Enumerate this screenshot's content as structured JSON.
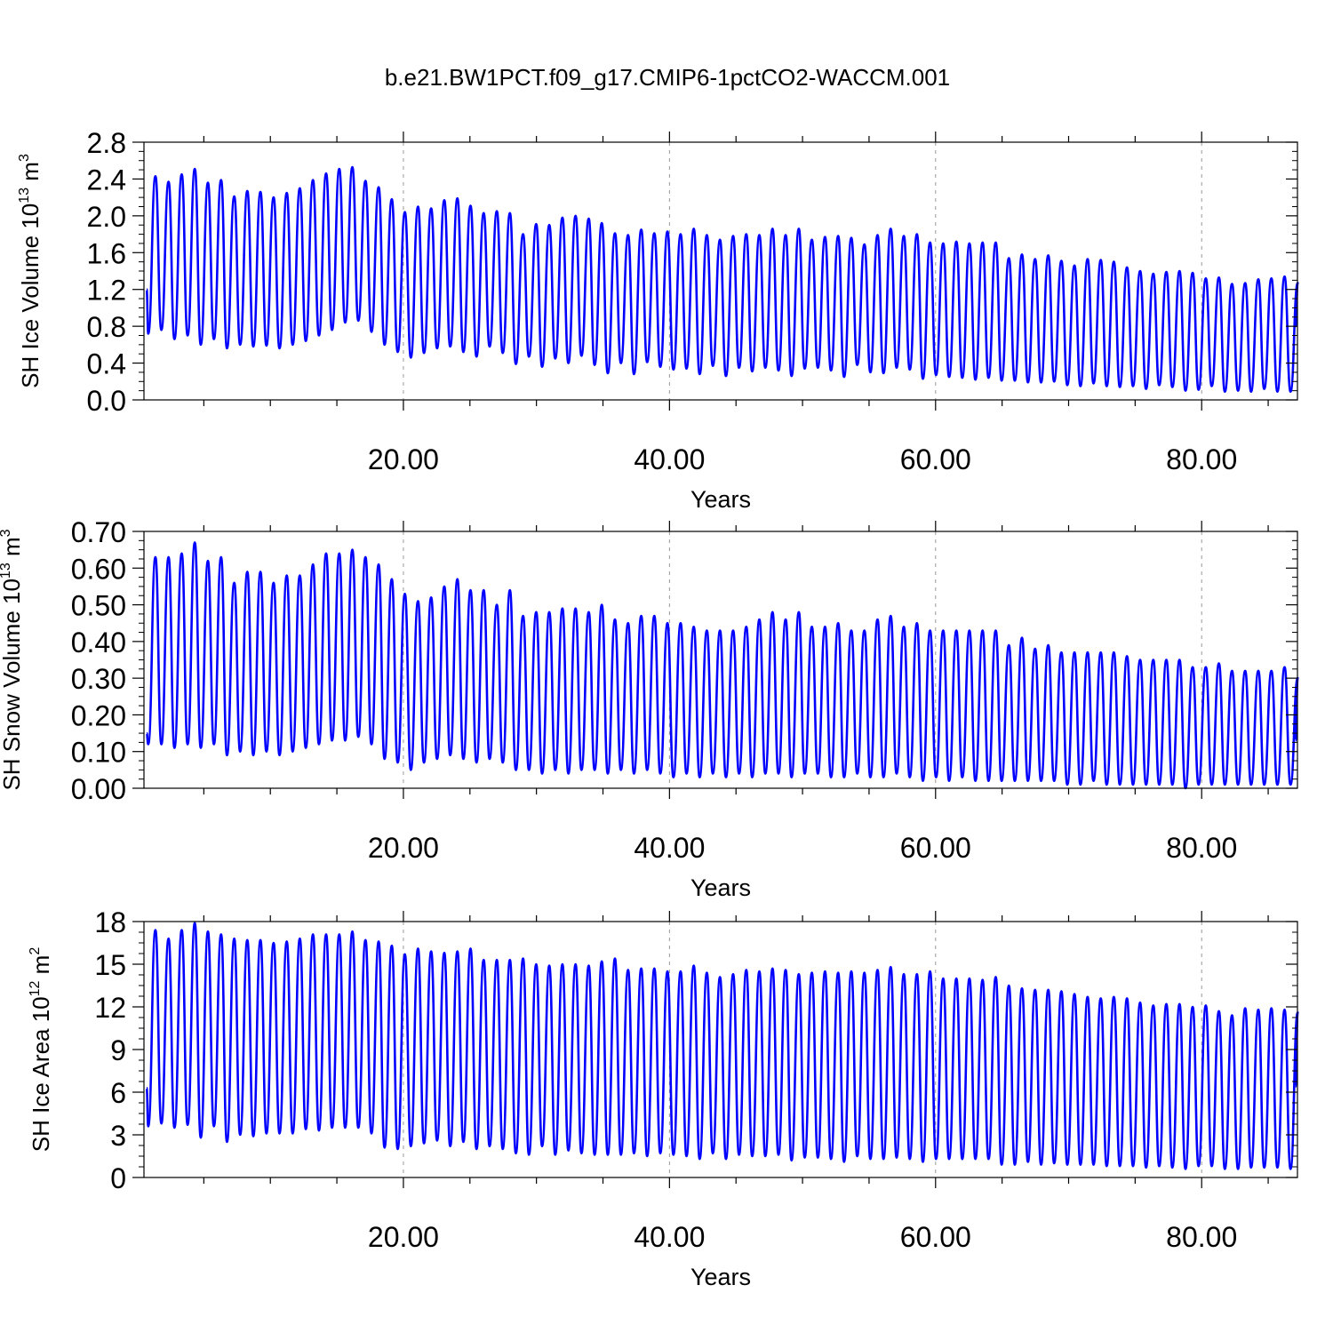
{
  "title": "b.e21.BW1PCT.f09_g17.CMIP6-1pctCO2-WACCM.001",
  "colors": {
    "series": "#0000ff",
    "axis": "#000000",
    "gridline": "#999999",
    "background": "#ffffff"
  },
  "chart_data": [
    {
      "type": "line",
      "ylabel": {
        "prefix": "SH Ice Volume 10",
        "exp": "13",
        "unit": " m",
        "unit_exp": "3"
      },
      "xlabel": "Years",
      "xlim": [
        0.5,
        87.2
      ],
      "ylim": [
        0,
        2.8
      ],
      "yticks": [
        "0.0",
        "0.4",
        "0.8",
        "1.2",
        "1.6",
        "2.0",
        "2.4",
        "2.8"
      ],
      "ytick_values": [
        0,
        0.4,
        0.8,
        1.2,
        1.6,
        2.0,
        2.4,
        2.8
      ],
      "xticks": [
        "20.00",
        "40.00",
        "60.00",
        "80.00"
      ],
      "xtick_values": [
        20,
        40,
        60,
        80
      ],
      "grid": "vertical dashed at major x ticks",
      "series": [
        {
          "start_value": 1.2,
          "end_value": 0.8,
          "annual_max": [
            2.43,
            2.37,
            2.45,
            2.51,
            2.36,
            2.39,
            2.21,
            2.27,
            2.26,
            2.2,
            2.25,
            2.3,
            2.39,
            2.46,
            2.51,
            2.53,
            2.38,
            2.31,
            2.18,
            2.04,
            2.1,
            2.08,
            2.17,
            2.19,
            2.11,
            2.03,
            2.05,
            2.03,
            1.8,
            1.91,
            1.9,
            1.98,
            2.0,
            1.97,
            1.92,
            1.81,
            1.79,
            1.85,
            1.81,
            1.83,
            1.8,
            1.86,
            1.79,
            1.74,
            1.78,
            1.8,
            1.79,
            1.86,
            1.79,
            1.86,
            1.74,
            1.77,
            1.78,
            1.76,
            1.69,
            1.79,
            1.86,
            1.78,
            1.8,
            1.71,
            1.7,
            1.72,
            1.7,
            1.71,
            1.71,
            1.54,
            1.58,
            1.53,
            1.57,
            1.51,
            1.46,
            1.53,
            1.52,
            1.5,
            1.44,
            1.4,
            1.37,
            1.39,
            1.4,
            1.38,
            1.32,
            1.33,
            1.26,
            1.27,
            1.31,
            1.32,
            1.34,
            1.27
          ],
          "annual_min": [
            0.72,
            0.76,
            0.66,
            0.7,
            0.6,
            0.66,
            0.56,
            0.6,
            0.58,
            0.59,
            0.56,
            0.6,
            0.64,
            0.7,
            0.76,
            0.84,
            0.86,
            0.74,
            0.6,
            0.52,
            0.46,
            0.51,
            0.56,
            0.58,
            0.52,
            0.47,
            0.58,
            0.51,
            0.39,
            0.47,
            0.36,
            0.45,
            0.4,
            0.48,
            0.38,
            0.29,
            0.4,
            0.28,
            0.41,
            0.36,
            0.33,
            0.34,
            0.28,
            0.37,
            0.26,
            0.35,
            0.31,
            0.35,
            0.32,
            0.26,
            0.34,
            0.35,
            0.32,
            0.25,
            0.38,
            0.3,
            0.29,
            0.35,
            0.33,
            0.23,
            0.27,
            0.25,
            0.24,
            0.22,
            0.24,
            0.21,
            0.21,
            0.19,
            0.19,
            0.2,
            0.16,
            0.15,
            0.18,
            0.15,
            0.14,
            0.15,
            0.12,
            0.16,
            0.14,
            0.1,
            0.11,
            0.15,
            0.09,
            0.1,
            0.09,
            0.12,
            0.09,
            0.09
          ]
        }
      ]
    },
    {
      "type": "line",
      "ylabel": {
        "prefix": "SH Snow Volume 10",
        "exp": "13",
        "unit": " m",
        "unit_exp": "3"
      },
      "xlabel": "Years",
      "xlim": [
        0.5,
        87.2
      ],
      "ylim": [
        0,
        0.7
      ],
      "yticks": [
        "0.00",
        "0.10",
        "0.20",
        "0.30",
        "0.40",
        "0.50",
        "0.60",
        "0.70"
      ],
      "ytick_values": [
        0,
        0.1,
        0.2,
        0.3,
        0.4,
        0.5,
        0.6,
        0.7
      ],
      "xticks": [
        "20.00",
        "40.00",
        "60.00",
        "80.00"
      ],
      "xtick_values": [
        20,
        40,
        60,
        80
      ],
      "grid": "vertical dashed at major x ticks",
      "series": [
        {
          "start_value": 0.15,
          "end_value": 0.13,
          "annual_max": [
            0.63,
            0.63,
            0.64,
            0.67,
            0.62,
            0.63,
            0.56,
            0.59,
            0.59,
            0.56,
            0.58,
            0.58,
            0.61,
            0.64,
            0.64,
            0.65,
            0.63,
            0.61,
            0.57,
            0.53,
            0.51,
            0.52,
            0.55,
            0.57,
            0.54,
            0.54,
            0.5,
            0.54,
            0.47,
            0.48,
            0.48,
            0.49,
            0.49,
            0.48,
            0.5,
            0.46,
            0.45,
            0.47,
            0.47,
            0.45,
            0.45,
            0.44,
            0.43,
            0.43,
            0.43,
            0.44,
            0.46,
            0.48,
            0.46,
            0.48,
            0.44,
            0.44,
            0.45,
            0.43,
            0.43,
            0.46,
            0.47,
            0.44,
            0.45,
            0.43,
            0.43,
            0.43,
            0.43,
            0.43,
            0.43,
            0.39,
            0.41,
            0.38,
            0.39,
            0.37,
            0.37,
            0.37,
            0.37,
            0.37,
            0.36,
            0.35,
            0.35,
            0.35,
            0.35,
            0.33,
            0.33,
            0.34,
            0.32,
            0.32,
            0.32,
            0.32,
            0.33,
            0.3
          ],
          "annual_min": [
            0.12,
            0.12,
            0.11,
            0.12,
            0.11,
            0.12,
            0.09,
            0.1,
            0.09,
            0.1,
            0.09,
            0.1,
            0.11,
            0.12,
            0.13,
            0.13,
            0.14,
            0.12,
            0.08,
            0.07,
            0.05,
            0.07,
            0.08,
            0.09,
            0.08,
            0.07,
            0.08,
            0.07,
            0.05,
            0.05,
            0.04,
            0.05,
            0.04,
            0.05,
            0.05,
            0.04,
            0.05,
            0.04,
            0.05,
            0.04,
            0.03,
            0.04,
            0.03,
            0.04,
            0.03,
            0.04,
            0.03,
            0.04,
            0.04,
            0.03,
            0.04,
            0.04,
            0.03,
            0.03,
            0.04,
            0.03,
            0.03,
            0.04,
            0.03,
            0.02,
            0.03,
            0.02,
            0.03,
            0.02,
            0.02,
            0.02,
            0.02,
            0.02,
            0.02,
            0.02,
            0.01,
            0.01,
            0.02,
            0.01,
            0.01,
            0.01,
            0.01,
            0.01,
            0.01,
            0.0,
            0.01,
            0.01,
            0.01,
            0.01,
            0.01,
            0.01,
            0.01,
            0.01
          ]
        }
      ]
    },
    {
      "type": "line",
      "ylabel": {
        "prefix": "SH Ice Area 10",
        "exp": "12",
        "unit": " m",
        "unit_exp": "2"
      },
      "xlabel": "Years",
      "xlim": [
        0.5,
        87.2
      ],
      "ylim": [
        0,
        18
      ],
      "yticks": [
        "0",
        "3",
        "6",
        "9",
        "12",
        "15",
        "18"
      ],
      "ytick_values": [
        0,
        3,
        6,
        9,
        12,
        15,
        18
      ],
      "xticks": [
        "20.00",
        "40.00",
        "60.00",
        "80.00"
      ],
      "xtick_values": [
        20,
        40,
        60,
        80
      ],
      "grid": "vertical dashed at major x ticks",
      "series": [
        {
          "start_value": 6.3,
          "end_value": 6.4,
          "annual_max": [
            17.4,
            16.8,
            17.4,
            17.9,
            17.3,
            17.1,
            16.8,
            16.7,
            16.7,
            16.5,
            16.6,
            16.8,
            17.1,
            17.1,
            17.1,
            17.3,
            16.7,
            16.6,
            16.3,
            15.7,
            16.1,
            15.9,
            15.8,
            15.9,
            16.1,
            15.3,
            15.3,
            15.3,
            15.4,
            15.0,
            14.9,
            15.0,
            15.0,
            14.9,
            15.2,
            15.4,
            14.6,
            14.7,
            14.7,
            14.5,
            14.5,
            14.9,
            14.4,
            14.1,
            14.3,
            14.6,
            14.5,
            14.7,
            14.6,
            14.3,
            14.4,
            14.5,
            14.4,
            14.5,
            14.4,
            14.6,
            14.8,
            14.3,
            14.3,
            14.5,
            14.0,
            14.0,
            14.0,
            13.9,
            14.1,
            13.5,
            13.3,
            13.2,
            13.2,
            13.1,
            12.9,
            12.7,
            12.6,
            12.7,
            12.6,
            12.3,
            12.1,
            12.2,
            12.2,
            12.0,
            12.1,
            11.7,
            11.4,
            11.9,
            11.8,
            11.9,
            11.8,
            11.6
          ],
          "annual_min": [
            3.6,
            3.8,
            3.5,
            3.7,
            2.8,
            3.6,
            2.5,
            3.0,
            2.9,
            3.1,
            3.1,
            3.1,
            3.4,
            3.3,
            3.5,
            3.5,
            3.5,
            3.1,
            2.1,
            2.0,
            2.2,
            2.4,
            2.6,
            2.2,
            2.5,
            2.0,
            2.2,
            2.0,
            1.7,
            1.6,
            2.2,
            1.6,
            1.9,
            1.7,
            1.6,
            1.6,
            1.6,
            1.7,
            1.5,
            1.7,
            1.6,
            1.5,
            1.3,
            1.7,
            1.3,
            1.6,
            1.5,
            1.5,
            1.6,
            1.2,
            1.4,
            1.4,
            1.3,
            1.1,
            1.5,
            1.3,
            1.3,
            1.4,
            1.3,
            1.1,
            1.3,
            1.3,
            1.3,
            1.3,
            1.3,
            0.9,
            0.9,
            1.1,
            0.9,
            1.0,
            0.9,
            0.9,
            0.9,
            0.8,
            0.8,
            0.8,
            0.7,
            0.8,
            0.7,
            0.6,
            0.8,
            0.8,
            0.6,
            0.6,
            0.7,
            0.7,
            0.7,
            0.6
          ]
        }
      ]
    }
  ]
}
